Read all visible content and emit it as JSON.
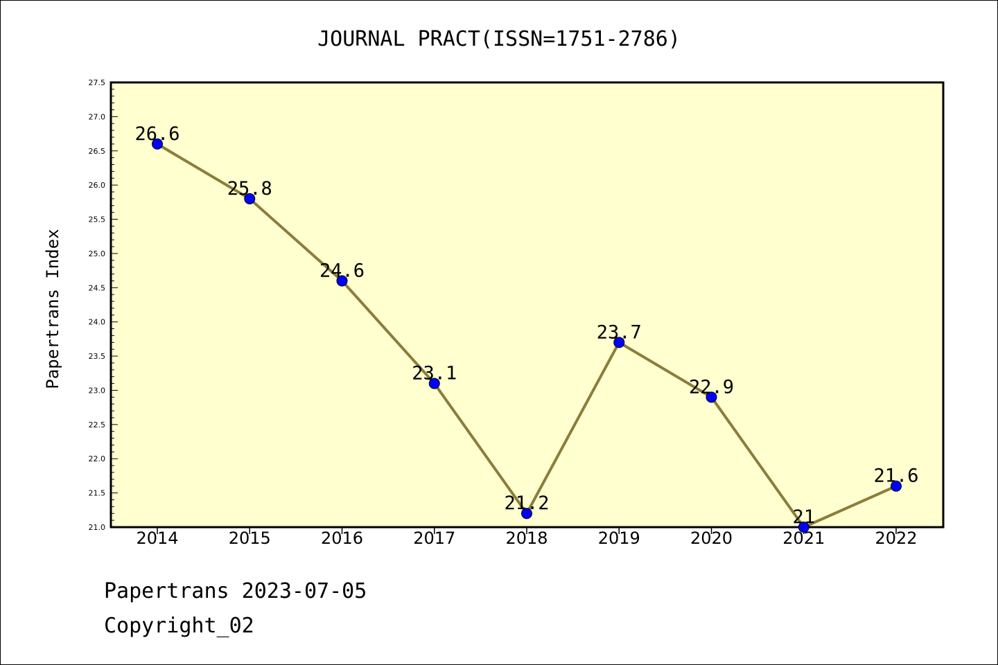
{
  "chart_data": {
    "type": "line",
    "title": "JOURNAL PRACT(ISSN=1751-2786)",
    "ylabel": "Papertrans Index",
    "xlabel": "",
    "categories": [
      "2014",
      "2015",
      "2016",
      "2017",
      "2018",
      "2019",
      "2020",
      "2021",
      "2022"
    ],
    "series": [
      {
        "values": [
          26.6,
          25.8,
          24.6,
          23.1,
          21.2,
          23.7,
          22.9,
          21.0,
          21.6
        ],
        "data_labels": [
          "26.6",
          "25.8",
          "24.6",
          "23.1",
          "21.2",
          "23.7",
          "22.9",
          "21",
          "21.6"
        ]
      }
    ],
    "ylim": [
      21.0,
      27.5
    ],
    "yticks": [
      "21.0",
      "21.5",
      "22.0",
      "22.5",
      "23.0",
      "23.5",
      "24.0",
      "24.5",
      "25.0",
      "25.5",
      "26.0",
      "26.5",
      "27.0",
      "27.5"
    ],
    "grid": false,
    "colors": {
      "plot_background": "#ffffd0",
      "line": "#8b7d3a",
      "marker": "#0000ff"
    }
  },
  "footer": {
    "line1": "Papertrans 2023-07-05",
    "line2": "Copyright_02"
  }
}
